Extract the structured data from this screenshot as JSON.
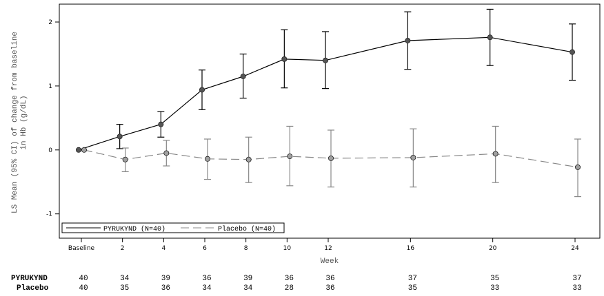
{
  "chart_data": {
    "type": "line",
    "xlabel": "Week",
    "ylabel_line1": "LS Mean (95% CI) of change from baseline",
    "ylabel_line2": "in Hb (g/dL)",
    "categories": [
      "Baseline",
      "2",
      "4",
      "6",
      "8",
      "10",
      "12",
      "16",
      "20",
      "24"
    ],
    "x_values": [
      0,
      2,
      4,
      6,
      8,
      10,
      12,
      16,
      20,
      24
    ],
    "yticks": [
      -1,
      0,
      1,
      2
    ],
    "ylim": [
      -1.38,
      2.28
    ],
    "grid": false,
    "legend_position": "bottom-left",
    "series": [
      {
        "name": "PYRUKYND (N=40)",
        "color": "#000000",
        "marker_color": "#555555",
        "dash": "solid",
        "values": [
          0.0,
          0.21,
          0.4,
          0.94,
          1.15,
          1.42,
          1.4,
          1.71,
          1.76,
          1.53
        ],
        "ci_low": [
          0.0,
          0.02,
          0.2,
          0.63,
          0.81,
          0.97,
          0.96,
          1.26,
          1.32,
          1.09
        ],
        "ci_high": [
          0.0,
          0.4,
          0.6,
          1.25,
          1.5,
          1.88,
          1.85,
          2.16,
          2.2,
          1.97
        ]
      },
      {
        "name": "Placebo (N=40)",
        "color": "#888888",
        "marker_color": "#a0a0a0",
        "dash": "dashed",
        "values": [
          0.0,
          -0.15,
          -0.05,
          -0.14,
          -0.15,
          -0.1,
          -0.13,
          -0.12,
          -0.06,
          -0.27
        ],
        "ci_low": [
          0.0,
          -0.34,
          -0.25,
          -0.46,
          -0.51,
          -0.56,
          -0.58,
          -0.58,
          -0.51,
          -0.73
        ],
        "ci_high": [
          0.0,
          0.03,
          0.15,
          0.17,
          0.2,
          0.37,
          0.31,
          0.33,
          0.37,
          0.17
        ]
      }
    ]
  },
  "risk_table": {
    "rows": [
      {
        "label": "PYRUKYND",
        "values": [
          "40",
          "34",
          "39",
          "36",
          "39",
          "36",
          "36",
          "37",
          "35",
          "37"
        ]
      },
      {
        "label": "Placebo",
        "values": [
          "40",
          "35",
          "36",
          "34",
          "34",
          "28",
          "36",
          "35",
          "33",
          "33"
        ]
      }
    ]
  }
}
